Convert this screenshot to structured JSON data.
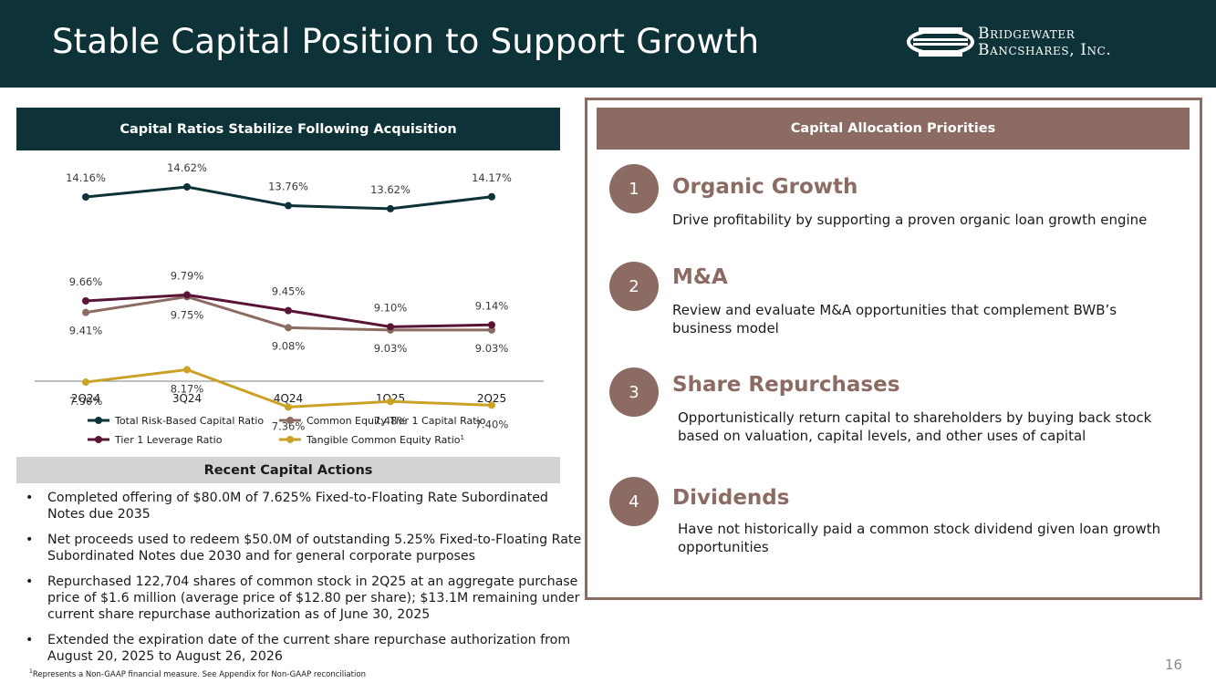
{
  "header": {
    "title": "Stable Capital Position to Support Growth",
    "logo_line1": "Bridgewater",
    "logo_line2": "Bancshares, Inc."
  },
  "left": {
    "banner": "Capital Ratios Stabilize Following Acquisition"
  },
  "chart_data": {
    "type": "line",
    "title": "Capital Ratios Stabilize Following Acquisition",
    "categories": [
      "2Q24",
      "3Q24",
      "4Q24",
      "1Q25",
      "2Q25"
    ],
    "series": [
      {
        "name": "Total Risk-Based Capital Ratio",
        "color": "#0d3238",
        "values": [
          14.16,
          14.62,
          13.76,
          13.62,
          14.17
        ],
        "labels": [
          "14.16%",
          "14.62%",
          "13.76%",
          "13.62%",
          "14.17%"
        ]
      },
      {
        "name": "Common Equity Tier 1 Capital Ratio",
        "color": "#8b6b62",
        "values": [
          9.41,
          9.75,
          9.08,
          9.03,
          9.03
        ],
        "labels": [
          "9.41%",
          "9.75%",
          "9.08%",
          "9.03%",
          "9.03%"
        ]
      },
      {
        "name": "Tier 1 Leverage Ratio",
        "color": "#5a1436",
        "values": [
          9.66,
          9.79,
          9.45,
          9.1,
          9.14
        ],
        "labels": [
          "9.66%",
          "9.79%",
          "9.45%",
          "9.10%",
          "9.14%"
        ]
      },
      {
        "name": "Tangible Common Equity Ratio",
        "legend_sup": "1",
        "color": "#c9a227",
        "values": [
          7.9,
          8.17,
          7.36,
          7.48,
          7.4
        ],
        "labels": [
          "7.90%",
          "8.17%",
          "7.36%",
          "7.48%",
          "7.40%"
        ]
      }
    ],
    "xlabel": "",
    "ylabel": "",
    "legend": "bottom"
  },
  "actions": {
    "banner": "Recent Capital Actions",
    "bullet": "•",
    "items": [
      "Completed offering of $80.0M of 7.625% Fixed-to-Floating Rate Subordinated Notes due 2035",
      "Net proceeds used to redeem $50.0M of outstanding 5.25% Fixed-to-Floating Rate Subordinated Notes due 2030 and for general corporate purposes",
      "Repurchased 122,704 shares of common stock in 2Q25 at an aggregate purchase price of $1.6 million (average price of $12.80 per share); $13.1M remaining under current share repurchase authorization as of June 30, 2025",
      "Extended the expiration date of the current share repurchase authorization from August 20, 2025 to August 26, 2026"
    ]
  },
  "footnote": {
    "sup": "1",
    "text": "Represents a Non-GAAP financial measure. See Appendix for Non-GAAP reconciliation"
  },
  "page_number": "16",
  "priorities": {
    "banner": "Capital Allocation Priorities",
    "items": [
      {
        "number": "1",
        "title": "Organic Growth",
        "desc": "Drive profitability by supporting a proven organic loan growth engine"
      },
      {
        "number": "2",
        "title": "M&A",
        "desc": "Review and evaluate M&A opportunities that complement BWB’s business model"
      },
      {
        "number": "3",
        "title": "Share Repurchases",
        "desc": "Opportunistically return capital to shareholders by buying back stock based on valuation, capital levels, and other uses of capital"
      },
      {
        "number": "4",
        "title": "Dividends",
        "desc": "Have not historically paid a common stock dividend given loan growth opportunities"
      }
    ]
  },
  "colors": {
    "header_bg": "#0d3238",
    "accent": "#8b6b62"
  }
}
